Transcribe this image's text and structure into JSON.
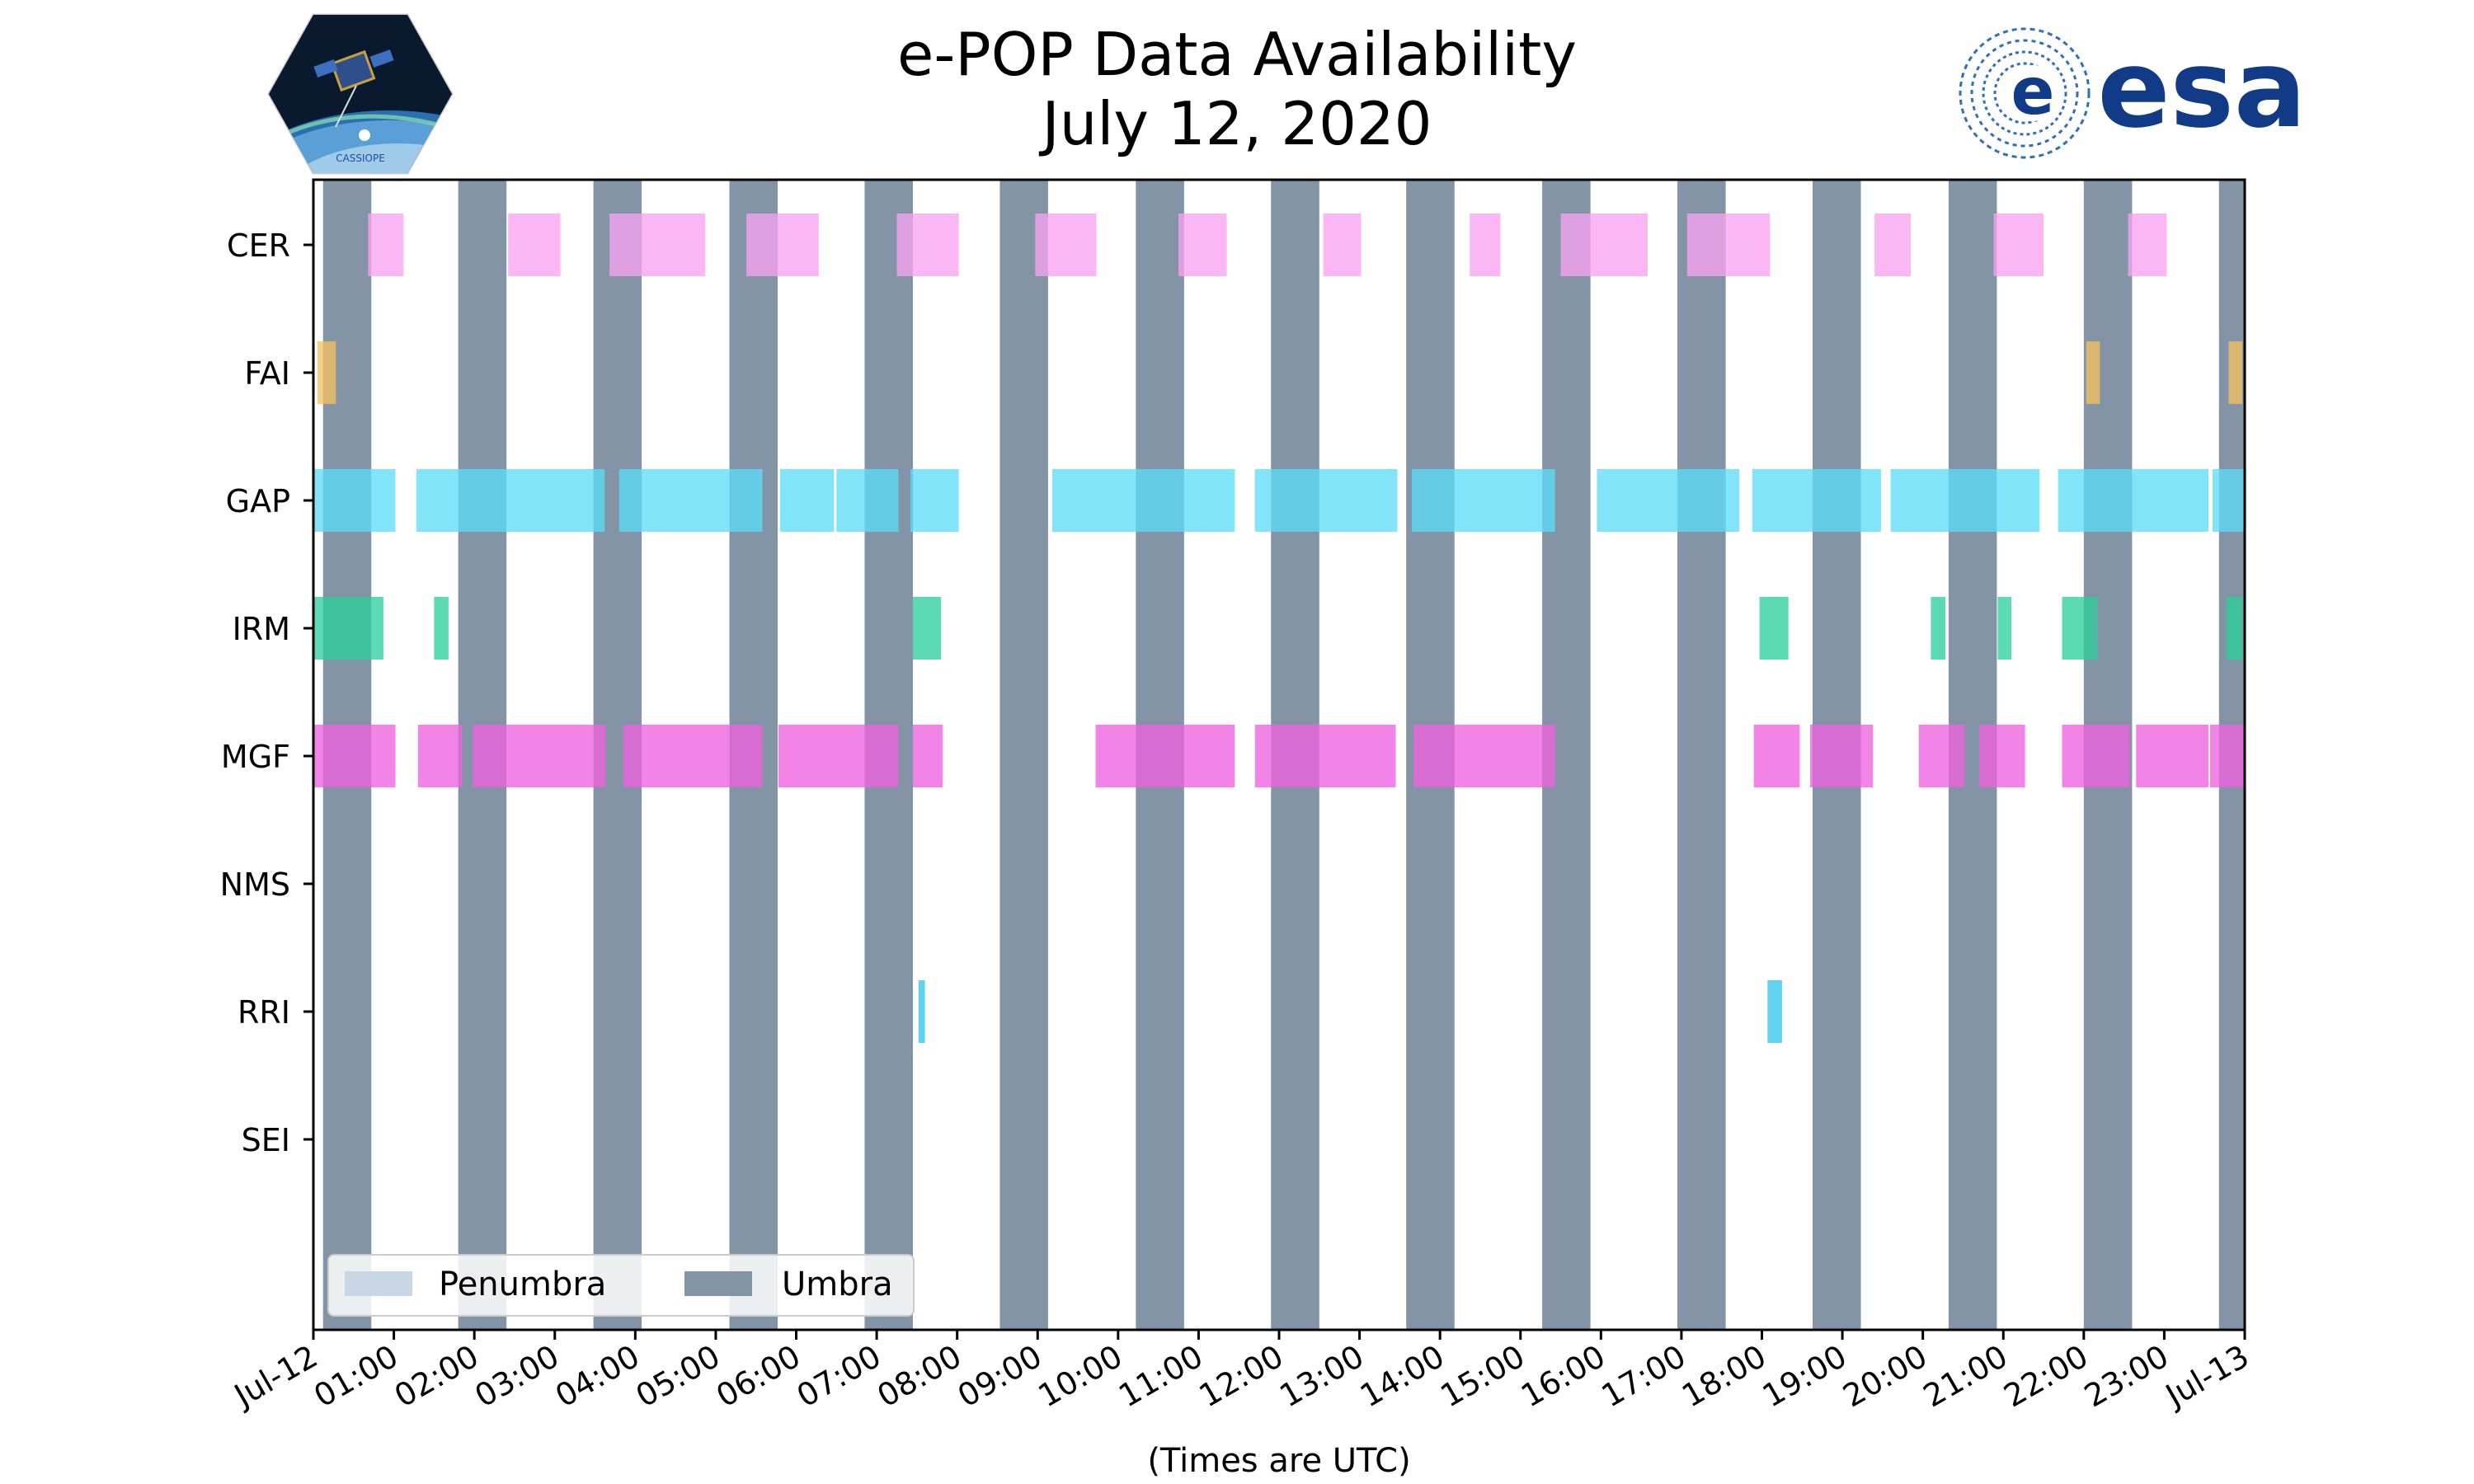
{
  "title_line1": "e-POP Data Availability",
  "title_line2": "July 12, 2020",
  "logos": {
    "left": {
      "icon": "cassiope-mission-patch",
      "text": "CASSIOPE"
    },
    "right": {
      "icon": "esa-logo",
      "text": "esa"
    }
  },
  "chart_data": {
    "type": "gantt",
    "xlabel": "(Times are UTC)",
    "x_unit": "hours UTC",
    "xlim": [
      0,
      24
    ],
    "x_tick_labels": [
      "Jul-12",
      "01:00",
      "02:00",
      "03:00",
      "04:00",
      "05:00",
      "06:00",
      "07:00",
      "08:00",
      "09:00",
      "10:00",
      "11:00",
      "12:00",
      "13:00",
      "14:00",
      "15:00",
      "16:00",
      "17:00",
      "18:00",
      "19:00",
      "20:00",
      "21:00",
      "22:00",
      "23:00",
      "Jul-13"
    ],
    "instruments": [
      "CER",
      "FAI",
      "GAP",
      "IRM",
      "MGF",
      "NMS",
      "RRI",
      "SEI"
    ],
    "colors": {
      "CER": "#f9a3f1",
      "FAI": "#f2c262",
      "GAP": "#5edcf7",
      "IRM": "#2ecf9d",
      "MGF": "#ef62e0",
      "NMS": "#888888",
      "RRI": "#34c5ea",
      "SEI": "#888888",
      "umbra": "#8294a6",
      "penumbra": "#c8d6e6"
    },
    "intervals": {
      "CER": [
        [
          0.68,
          1.12
        ],
        [
          2.42,
          3.07
        ],
        [
          3.68,
          4.87
        ],
        [
          5.38,
          6.28
        ],
        [
          7.25,
          8.02
        ],
        [
          8.97,
          9.73
        ],
        [
          10.75,
          11.35
        ],
        [
          12.55,
          13.02
        ],
        [
          14.37,
          14.75
        ],
        [
          15.5,
          16.58
        ],
        [
          17.07,
          18.1
        ],
        [
          19.4,
          19.85
        ],
        [
          20.88,
          21.5
        ],
        [
          22.55,
          23.03
        ]
      ],
      "FAI": [
        [
          0.05,
          0.28
        ],
        [
          22.03,
          22.2
        ],
        [
          23.8,
          23.97
        ]
      ],
      "GAP": [
        [
          0.0,
          1.02
        ],
        [
          1.28,
          3.62
        ],
        [
          3.8,
          5.58
        ],
        [
          5.8,
          6.47
        ],
        [
          6.5,
          7.27
        ],
        [
          7.42,
          8.02
        ],
        [
          9.18,
          11.45
        ],
        [
          11.7,
          13.47
        ],
        [
          13.65,
          15.43
        ],
        [
          15.95,
          17.72
        ],
        [
          17.88,
          19.48
        ],
        [
          19.6,
          21.45
        ],
        [
          21.68,
          23.55
        ],
        [
          23.6,
          24.0
        ]
      ],
      "IRM": [
        [
          0.0,
          0.87
        ],
        [
          1.5,
          1.68
        ],
        [
          7.45,
          7.8
        ],
        [
          17.97,
          18.33
        ],
        [
          20.1,
          20.28
        ],
        [
          20.93,
          21.1
        ],
        [
          21.73,
          22.17
        ],
        [
          23.77,
          23.97
        ]
      ],
      "MGF": [
        [
          0.0,
          1.02
        ],
        [
          1.3,
          1.85
        ],
        [
          1.98,
          3.63
        ],
        [
          3.85,
          5.58
        ],
        [
          5.78,
          7.27
        ],
        [
          7.45,
          7.82
        ],
        [
          9.72,
          11.45
        ],
        [
          11.7,
          13.45
        ],
        [
          13.67,
          15.43
        ],
        [
          17.9,
          18.47
        ],
        [
          18.6,
          19.38
        ],
        [
          19.95,
          20.52
        ],
        [
          20.7,
          21.27
        ],
        [
          21.73,
          22.57
        ],
        [
          22.65,
          23.55
        ],
        [
          23.57,
          24.0
        ]
      ],
      "NMS": [],
      "RRI": [
        [
          7.52,
          7.6
        ],
        [
          18.07,
          18.25
        ]
      ],
      "SEI": []
    },
    "umbra": [
      [
        0.12,
        0.72
      ],
      [
        1.8,
        2.4
      ],
      [
        3.48,
        4.08
      ],
      [
        5.17,
        5.77
      ],
      [
        6.85,
        7.45
      ],
      [
        8.53,
        9.13
      ],
      [
        10.22,
        10.82
      ],
      [
        11.9,
        12.5
      ],
      [
        13.58,
        14.18
      ],
      [
        15.27,
        15.87
      ],
      [
        16.95,
        17.55
      ],
      [
        18.63,
        19.23
      ],
      [
        20.32,
        20.92
      ],
      [
        22.0,
        22.6
      ],
      [
        23.68,
        24.0
      ]
    ],
    "penumbra": [],
    "legend": {
      "position": "lower-left",
      "entries": [
        "Penumbra",
        "Umbra"
      ]
    },
    "grid": false
  }
}
